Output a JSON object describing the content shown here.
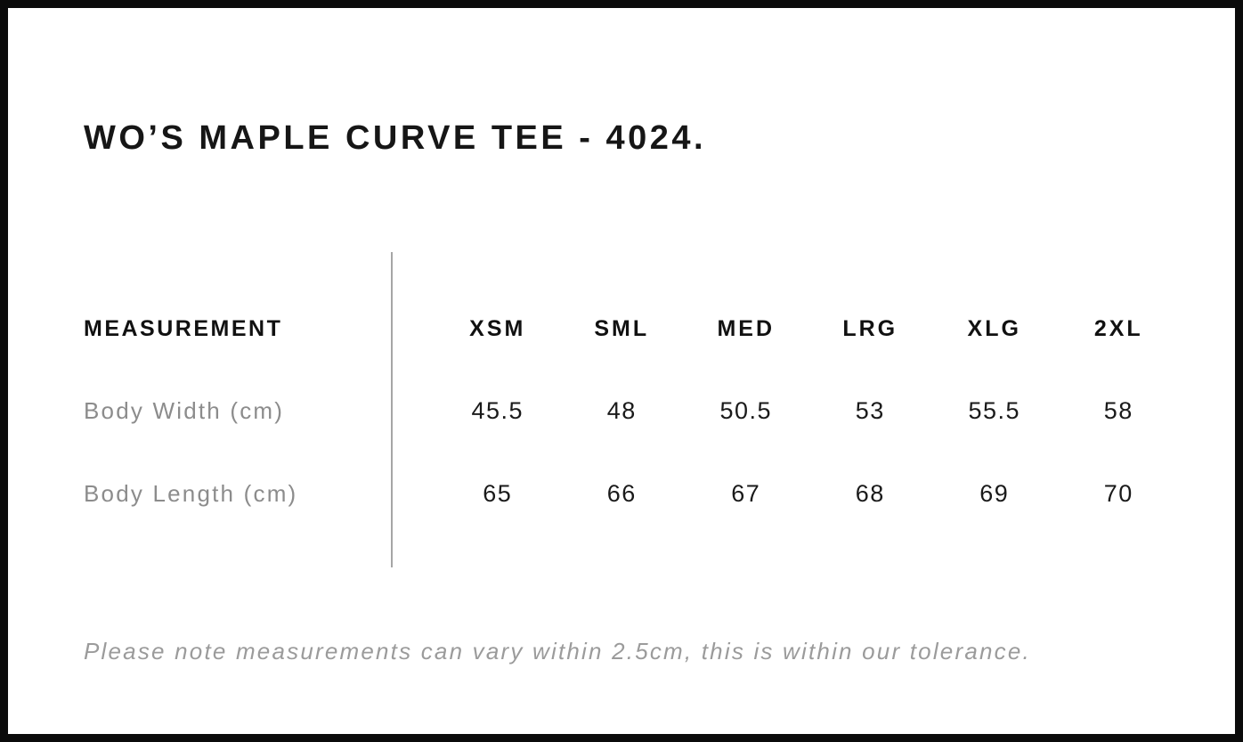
{
  "title": "WO’S MAPLE CURVE TEE - 4024.",
  "size_chart": {
    "measurement_header": "MEASUREMENT",
    "size_headers": [
      "XSM",
      "SML",
      "MED",
      "LRG",
      "XLG",
      "2XL"
    ],
    "rows": [
      {
        "label": "Body Width (cm)",
        "values": [
          "45.5",
          "48",
          "50.5",
          "53",
          "55.5",
          "58"
        ]
      },
      {
        "label": "Body Length (cm)",
        "values": [
          "65",
          "66",
          "67",
          "68",
          "69",
          "70"
        ]
      }
    ]
  },
  "note": "Please note measurements can vary within 2.5cm, this is within our tolerance.",
  "colors": {
    "border": "#0b0b0b",
    "background": "#ffffff",
    "heading_text": "#161616",
    "value_text": "#1a1a1a",
    "muted_label_text": "#8c8c8c",
    "note_text": "#9b9b9b",
    "divider": "#a6a6a6"
  }
}
